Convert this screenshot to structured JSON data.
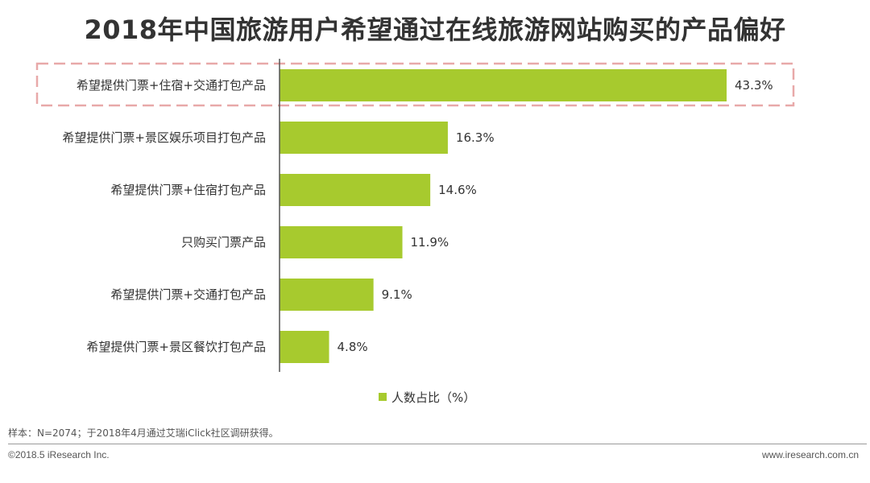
{
  "page": {
    "note": "样本：N=2074；于2018年4月通过艾瑞iClick社区调研获得。",
    "copyright": "©2018.5 iResearch Inc.",
    "website": "www.iresearch.com.cn"
  },
  "colors": {
    "bar": "#a7ca2e",
    "highlight_box": "#e8a9a9",
    "axis": "#555555"
  },
  "chart_data": {
    "type": "bar",
    "orientation": "horizontal",
    "title": "2018年中国旅游用户希望通过在线旅游网站购买的产品偏好",
    "categories": [
      "希望提供门票+住宿+交通打包产品",
      "希望提供门票+景区娱乐项目打包产品",
      "希望提供门票+住宿打包产品",
      "只购买门票产品",
      "希望提供门票+交通打包产品",
      "希望提供门票+景区餐饮打包产品"
    ],
    "series": [
      {
        "name": "人数占比（%）",
        "values": [
          43.3,
          16.3,
          14.6,
          11.9,
          9.1,
          4.8
        ],
        "labels": [
          "43.3%",
          "16.3%",
          "14.6%",
          "11.9%",
          "9.1%",
          "4.8%"
        ]
      }
    ],
    "xlim": [
      0,
      43.3
    ],
    "grid": false,
    "legend": "bottom-center",
    "highlight_category_index": 0
  }
}
